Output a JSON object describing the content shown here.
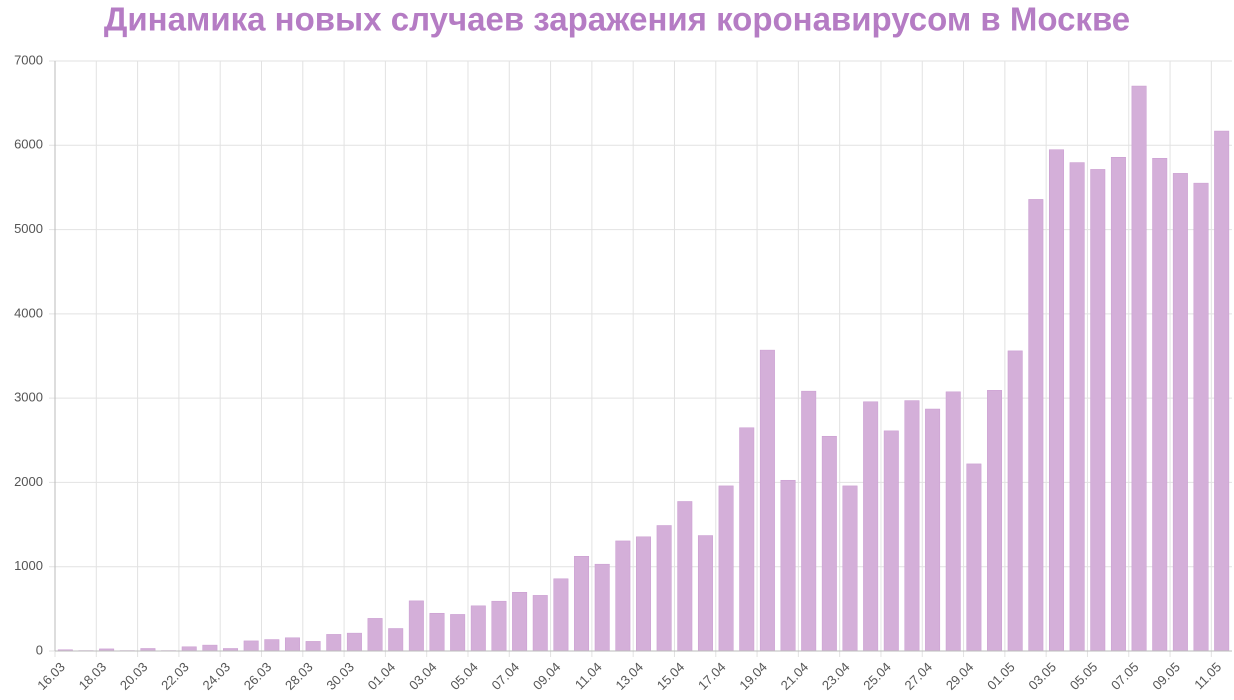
{
  "chart_data": {
    "type": "bar",
    "title": "Динамика новых случаев заражения коронавирусом в Москве",
    "categories": [
      "16.03",
      null,
      "18.03",
      null,
      "20.03",
      null,
      "22.03",
      null,
      "24.03",
      null,
      "26.03",
      null,
      "28.03",
      null,
      "30.03",
      null,
      "01.04",
      null,
      "03.04",
      null,
      "05.04",
      null,
      "07.04",
      null,
      "09.04",
      null,
      "11.04",
      null,
      "13.04",
      null,
      "15.04",
      null,
      "17.04",
      null,
      "19.04",
      null,
      "21.04",
      null,
      "23.04",
      null,
      "25.04",
      null,
      "27.04",
      null,
      "29.04",
      null,
      "01.05",
      null,
      "03.05",
      null,
      "05.05",
      null,
      "07.05",
      null,
      "09.05",
      null,
      "11.05"
    ],
    "values": [
      15,
      5,
      25,
      5,
      30,
      5,
      50,
      70,
      30,
      120,
      136,
      157,
      114,
      197,
      212,
      387,
      267,
      595,
      448,
      434,
      536,
      591,
      697,
      660,
      857,
      1124,
      1030,
      1306,
      1355,
      1489,
      1774,
      1370,
      1959,
      2649,
      3570,
      2026,
      3083,
      2548,
      1959,
      2957,
      2612,
      2971,
      2871,
      3075,
      2220,
      3093,
      3561,
      5358,
      5948,
      5795,
      5714,
      5858,
      6703,
      5846,
      5667,
      5551,
      6169
    ],
    "color": "#d4afd9",
    "ylim": [
      0,
      7000
    ],
    "yticks": [
      0,
      1000,
      2000,
      3000,
      4000,
      5000,
      6000,
      7000
    ],
    "grid": true
  }
}
